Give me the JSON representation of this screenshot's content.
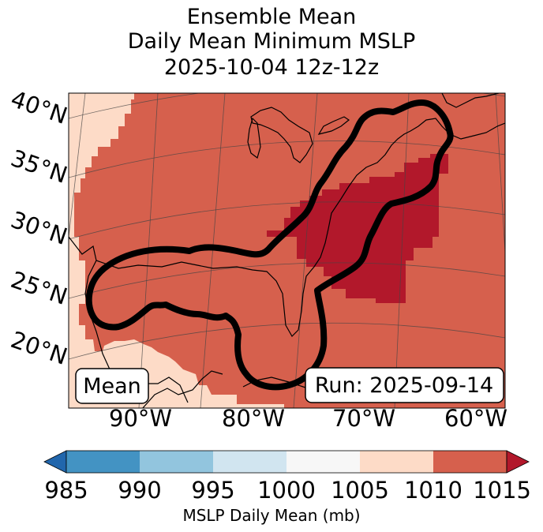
{
  "title": {
    "line1": "Ensemble Mean",
    "line2": "Daily Mean Minimum MSLP",
    "line3": "2025-10-04 12z-12z"
  },
  "map": {
    "latitude_labels": [
      "40°N",
      "35°N",
      "30°N",
      "25°N",
      "20°N"
    ],
    "longitude_labels": [
      "90°W",
      "80°W",
      "70°W",
      "60°W"
    ],
    "mean_badge": "Mean",
    "run_badge": "Run: 2025-09-14",
    "contour": "ensemble envelope outline (black)"
  },
  "colorbar": {
    "label": "MSLP Daily Mean (mb)",
    "ticks": [
      "985",
      "990",
      "995",
      "1000",
      "1005",
      "1010",
      "1015"
    ],
    "colors": [
      "#2166ac",
      "#4393c3",
      "#92c5de",
      "#d1e5f0",
      "#f7f7f7",
      "#fddbc7",
      "#d6604d",
      "#b2182b"
    ],
    "map_colors": {
      "light": "#fddbc7",
      "mid": "#d6604d",
      "dark": "#b2182b"
    }
  }
}
